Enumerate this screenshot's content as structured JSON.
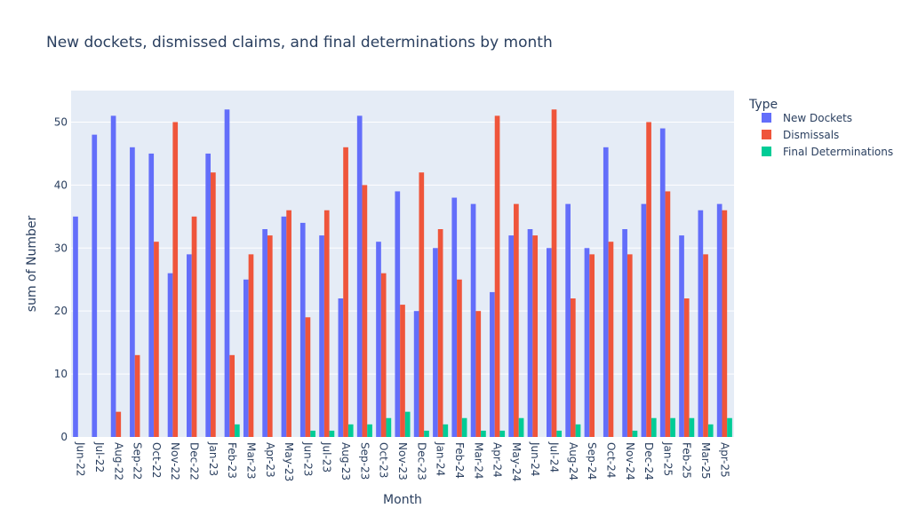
{
  "chart_data": {
    "type": "bar",
    "title": "New dockets, dismissed claims, and final determinations by month",
    "xlabel": "Month",
    "ylabel": "sum of Number",
    "ylim": [
      0,
      55
    ],
    "yticks": [
      0,
      10,
      20,
      30,
      40,
      50
    ],
    "grid": true,
    "legend": {
      "title": "Type",
      "placement": "right"
    },
    "categories": [
      "Jun-22",
      "Jul-22",
      "Aug-22",
      "Sep-22",
      "Oct-22",
      "Nov-22",
      "Dec-22",
      "Jan-23",
      "Feb-23",
      "Mar-23",
      "Apr-23",
      "May-23",
      "Jun-23",
      "Jul-23",
      "Aug-23",
      "Sep-23",
      "Oct-23",
      "Nov-23",
      "Dec-23",
      "Jan-24",
      "Feb-24",
      "Mar-24",
      "Apr-24",
      "May-24",
      "Jun-24",
      "Jul-24",
      "Aug-24",
      "Sep-24",
      "Oct-24",
      "Nov-24",
      "Dec-24",
      "Jan-25",
      "Feb-25",
      "Mar-25",
      "Apr-25"
    ],
    "series": [
      {
        "name": "New Dockets",
        "color": "#636efa",
        "values": [
          35,
          48,
          51,
          46,
          45,
          26,
          29,
          45,
          52,
          25,
          33,
          35,
          34,
          32,
          22,
          51,
          31,
          39,
          20,
          30,
          38,
          37,
          23,
          32,
          33,
          30,
          37,
          30,
          46,
          33,
          37,
          49,
          32,
          36,
          37
        ]
      },
      {
        "name": "Dismissals",
        "color": "#ef553b",
        "values": [
          0,
          0,
          4,
          13,
          31,
          50,
          35,
          42,
          13,
          29,
          32,
          36,
          19,
          36,
          46,
          40,
          26,
          21,
          42,
          33,
          25,
          20,
          51,
          37,
          32,
          52,
          22,
          29,
          31,
          29,
          50,
          39,
          22,
          29,
          36
        ]
      },
      {
        "name": "Final Determinations",
        "color": "#00cc96",
        "values": [
          0,
          0,
          0,
          0,
          0,
          0,
          0,
          0,
          2,
          0,
          0,
          0,
          1,
          1,
          2,
          2,
          3,
          4,
          1,
          2,
          3,
          1,
          1,
          3,
          0,
          1,
          2,
          0,
          0,
          1,
          3,
          3,
          3,
          2,
          3
        ]
      }
    ]
  }
}
